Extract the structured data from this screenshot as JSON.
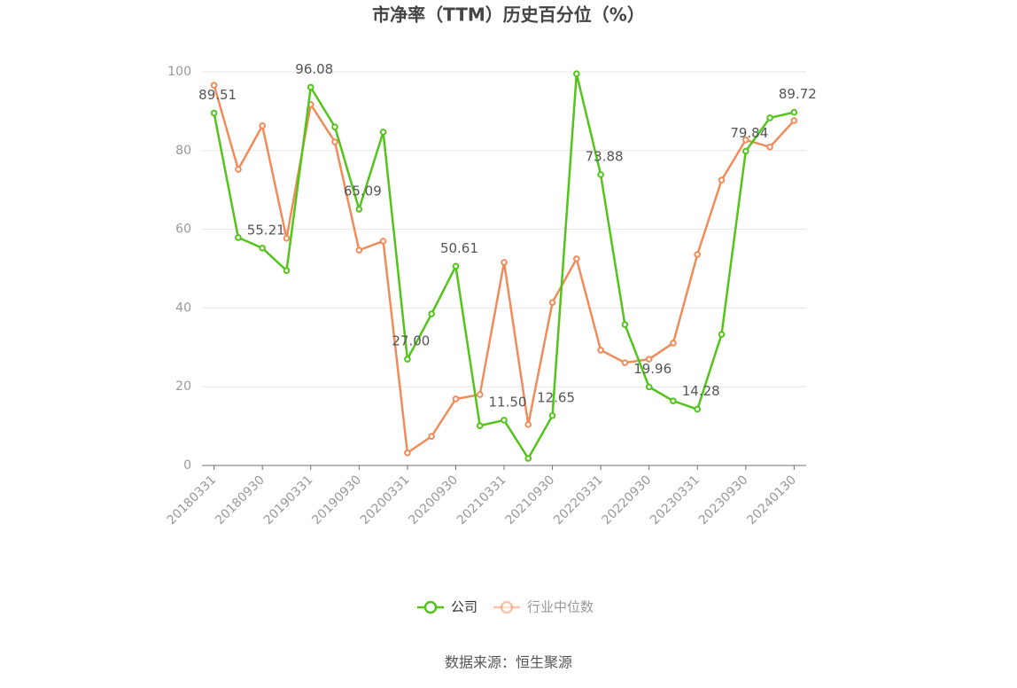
{
  "chart_data": {
    "type": "line",
    "title": "市净率（TTM）历史百分位（%）",
    "source": "数据来源：恒生聚源",
    "categories": [
      "20180331",
      null,
      "20180930",
      null,
      "20190331",
      null,
      "20190930",
      null,
      "20200331",
      null,
      "20200930",
      null,
      "20210331",
      null,
      "20210930",
      null,
      "20220331",
      null,
      "20220930",
      null,
      "20230331",
      null,
      "20230930",
      null,
      "20240130"
    ],
    "ylim": [
      0,
      100
    ],
    "yticks": [
      0,
      20,
      40,
      60,
      80,
      100
    ],
    "grid": true,
    "series": [
      {
        "name": "公司",
        "color": "#52c41a",
        "values": [
          89.51,
          57.9,
          55.21,
          49.5,
          96.08,
          86.0,
          65.09,
          84.7,
          27.0,
          38.5,
          50.61,
          10.1,
          11.5,
          1.8,
          12.65,
          99.5,
          73.88,
          35.8,
          19.96,
          16.4,
          14.28,
          33.3,
          79.84,
          88.3,
          89.72
        ],
        "value_labels": [
          "89.51",
          null,
          "55.21",
          null,
          "96.08",
          null,
          "65.09",
          null,
          "27.00",
          null,
          "50.61",
          null,
          "11.50",
          null,
          "12.65",
          null,
          "73.88",
          null,
          "19.96",
          null,
          "14.28",
          null,
          "79.84",
          null,
          "89.72"
        ]
      },
      {
        "name": "行业中位数",
        "color": "#f08c5a",
        "values": [
          96.6,
          75.2,
          86.3,
          57.7,
          91.7,
          82.2,
          54.7,
          57.0,
          3.2,
          7.4,
          16.9,
          18.0,
          51.6,
          10.4,
          41.4,
          52.5,
          29.3,
          26.1,
          27.0,
          31.1,
          53.6,
          72.5,
          82.7,
          80.9,
          87.6
        ]
      }
    ]
  }
}
